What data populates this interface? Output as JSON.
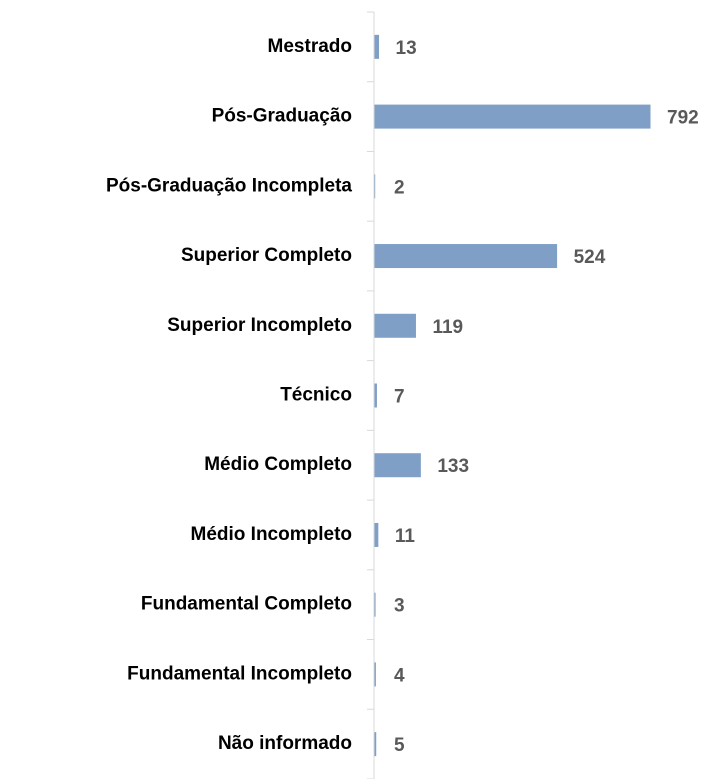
{
  "chart_data": {
    "type": "bar",
    "orientation": "horizontal",
    "categories": [
      "Mestrado",
      "Pós-Graduação",
      "Pós-Graduação Incompleta",
      "Superior Completo",
      "Superior Incompleto",
      "Técnico",
      "Médio Completo",
      "Médio Incompleto",
      "Fundamental Completo",
      "Fundamental Incompleto",
      "Não informado"
    ],
    "values": [
      13,
      792,
      2,
      524,
      119,
      7,
      133,
      11,
      3,
      4,
      5
    ],
    "color": "#7f9fc6"
  }
}
